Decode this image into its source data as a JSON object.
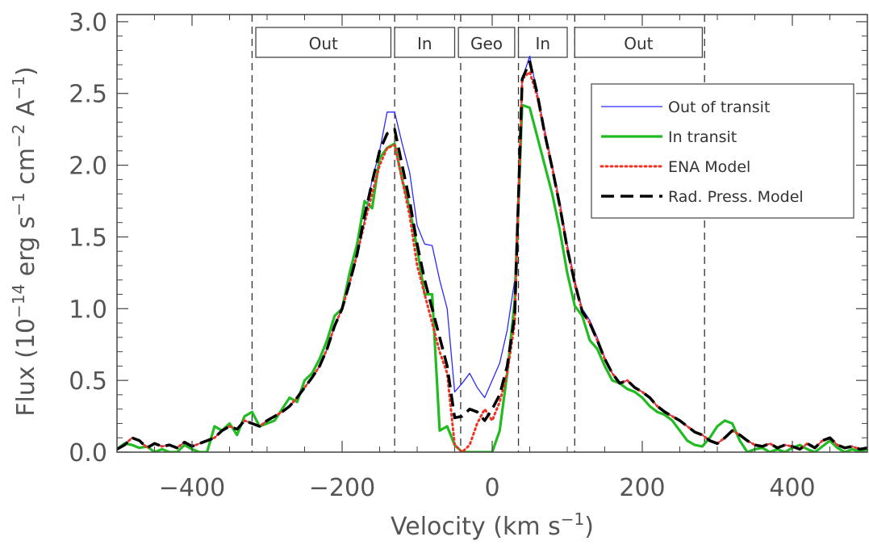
{
  "chart_data": {
    "type": "line",
    "title": "",
    "xlabel": "Velocity (km s",
    "xlabel_sup": "−1",
    "xlabel_end": ")",
    "ylabel": "Flux (10",
    "ylabel_sup1": "−14",
    "ylabel_mid1": " erg s",
    "ylabel_sup2": "−1",
    "ylabel_mid2": " cm",
    "ylabel_sup3": "−2",
    "ylabel_mid3": " A",
    "ylabel_sup4": "−1",
    "ylabel_end": ")",
    "xlim": [
      -500,
      500
    ],
    "ylim": [
      0,
      3.05
    ],
    "xticks": [
      -400,
      -200,
      0,
      200,
      400
    ],
    "xtick_labels": [
      "−400",
      "−200",
      "0",
      "200",
      "400"
    ],
    "yticks": [
      0,
      0.5,
      1,
      1.5,
      2,
      2.5,
      3
    ],
    "ytick_labels": [
      "0.0",
      "0.5",
      "1.0",
      "1.5",
      "2.0",
      "2.5",
      "3.0"
    ],
    "grid": false,
    "legend_position": "top-right",
    "regions": [
      {
        "label": "Out",
        "from": -315,
        "to": -135
      },
      {
        "label": "In",
        "from": -130,
        "to": -50
      },
      {
        "label": "Geo",
        "from": -45,
        "to": 30
      },
      {
        "label": "In",
        "from": 35,
        "to": 100
      },
      {
        "label": "Out",
        "from": 110,
        "to": 280
      }
    ],
    "dividers": [
      -320,
      -130,
      -42,
      35,
      110,
      283
    ],
    "series": [
      {
        "name": "Out of transit",
        "color": "#2a2aff",
        "style": "solid-thin",
        "x": [
          -500,
          -490,
          -480,
          -470,
          -460,
          -450,
          -440,
          -430,
          -420,
          -410,
          -400,
          -390,
          -380,
          -370,
          -360,
          -350,
          -340,
          -330,
          -320,
          -310,
          -300,
          -290,
          -280,
          -270,
          -260,
          -250,
          -240,
          -230,
          -220,
          -210,
          -200,
          -190,
          -180,
          -170,
          -160,
          -150,
          -140,
          -130,
          -120,
          -110,
          -100,
          -90,
          -80,
          -70,
          -60,
          -50,
          -40,
          -30,
          -20,
          -10,
          0,
          10,
          20,
          30,
          40,
          50,
          60,
          70,
          80,
          90,
          100,
          110,
          120,
          130,
          140,
          150,
          160,
          170,
          180,
          190,
          200,
          210,
          220,
          230,
          240,
          250,
          260,
          270,
          280,
          290,
          300,
          310,
          320,
          330,
          340,
          350,
          360,
          370,
          380,
          390,
          400,
          410,
          420,
          430,
          440,
          450,
          460,
          470,
          480,
          490,
          500
        ],
        "values": [
          0.02,
          0.05,
          0.1,
          0.08,
          0.03,
          0.06,
          0.04,
          0.05,
          0.03,
          0.07,
          0.04,
          0.06,
          0.08,
          0.1,
          0.15,
          0.18,
          0.16,
          0.22,
          0.2,
          0.18,
          0.22,
          0.25,
          0.28,
          0.32,
          0.38,
          0.45,
          0.52,
          0.6,
          0.72,
          0.88,
          1.0,
          1.18,
          1.38,
          1.62,
          1.9,
          2.1,
          2.37,
          2.37,
          2.15,
          1.95,
          1.58,
          1.45,
          1.44,
          1.2,
          1.0,
          0.42,
          0.48,
          0.55,
          0.45,
          0.38,
          0.5,
          0.62,
          0.85,
          1.2,
          2.6,
          2.76,
          2.5,
          2.25,
          2.0,
          1.75,
          1.45,
          1.2,
          1.0,
          0.92,
          0.8,
          0.66,
          0.55,
          0.48,
          0.5,
          0.45,
          0.42,
          0.38,
          0.32,
          0.28,
          0.25,
          0.22,
          0.18,
          0.14,
          0.12,
          0.08,
          0.06,
          0.1,
          0.15,
          0.12,
          0.08,
          0.05,
          0.04,
          0.06,
          0.03,
          0.05,
          0.04,
          0.02,
          0.06,
          0.03,
          0.08,
          0.1,
          0.05,
          0.03,
          0.04,
          0.02,
          0.03
        ]
      },
      {
        "name": "In transit",
        "color": "#22bb22",
        "style": "solid-thick",
        "x": [
          -500,
          -490,
          -480,
          -470,
          -460,
          -450,
          -440,
          -430,
          -420,
          -410,
          -400,
          -390,
          -380,
          -370,
          -360,
          -350,
          -340,
          -330,
          -320,
          -310,
          -300,
          -290,
          -280,
          -270,
          -260,
          -250,
          -240,
          -230,
          -220,
          -210,
          -200,
          -190,
          -180,
          -170,
          -160,
          -150,
          -140,
          -130,
          -120,
          -110,
          -100,
          -90,
          -80,
          -70,
          -60,
          -50,
          -40,
          -30,
          -20,
          -10,
          0,
          10,
          20,
          30,
          40,
          50,
          60,
          70,
          80,
          90,
          100,
          110,
          120,
          130,
          140,
          150,
          160,
          170,
          180,
          190,
          200,
          210,
          220,
          230,
          240,
          250,
          260,
          270,
          280,
          290,
          300,
          310,
          320,
          330,
          340,
          350,
          360,
          370,
          380,
          390,
          400,
          410,
          420,
          430,
          440,
          450,
          460,
          470,
          480,
          490,
          500
        ],
        "values": [
          0.02,
          0.06,
          0.05,
          0.03,
          0.04,
          0.0,
          0.02,
          0.0,
          0.0,
          0.05,
          0.02,
          0.0,
          0.0,
          0.18,
          0.15,
          0.2,
          0.12,
          0.25,
          0.28,
          0.18,
          0.2,
          0.22,
          0.3,
          0.38,
          0.35,
          0.5,
          0.55,
          0.65,
          0.78,
          0.95,
          1.0,
          1.25,
          1.45,
          1.75,
          1.7,
          2.05,
          2.12,
          2.15,
          1.9,
          1.7,
          1.42,
          1.1,
          1.1,
          0.15,
          0.18,
          0.05,
          0.0,
          0.0,
          0.0,
          0.0,
          0.0,
          0.15,
          0.55,
          1.05,
          2.42,
          2.4,
          2.2,
          2.0,
          1.8,
          1.55,
          1.25,
          1.02,
          0.95,
          0.78,
          0.72,
          0.6,
          0.5,
          0.48,
          0.44,
          0.42,
          0.38,
          0.32,
          0.28,
          0.26,
          0.22,
          0.15,
          0.08,
          0.05,
          0.04,
          0.1,
          0.18,
          0.22,
          0.2,
          0.08,
          0.0,
          0.02,
          0.03,
          0.0,
          0.02,
          0.0,
          0.03,
          0.05,
          0.02,
          0.0,
          0.04,
          0.08,
          0.03,
          0.0,
          0.02,
          0.0,
          0.02
        ]
      },
      {
        "name": "ENA Model",
        "color": "#ee3322",
        "style": "dotted",
        "x": [
          -500,
          -490,
          -480,
          -470,
          -460,
          -450,
          -440,
          -430,
          -420,
          -410,
          -400,
          -390,
          -380,
          -370,
          -360,
          -350,
          -340,
          -330,
          -320,
          -310,
          -300,
          -290,
          -280,
          -270,
          -260,
          -250,
          -240,
          -230,
          -220,
          -210,
          -200,
          -190,
          -180,
          -170,
          -160,
          -150,
          -140,
          -130,
          -120,
          -110,
          -100,
          -90,
          -80,
          -70,
          -60,
          -50,
          -40,
          -30,
          -20,
          -10,
          0,
          10,
          20,
          30,
          40,
          50,
          60,
          70,
          80,
          90,
          100,
          110,
          120,
          130,
          140,
          150,
          160,
          170,
          180,
          190,
          200,
          210,
          220,
          230,
          240,
          250,
          260,
          270,
          280,
          290,
          300,
          310,
          320,
          330,
          340,
          350,
          360,
          370,
          380,
          390,
          400,
          410,
          420,
          430,
          440,
          450,
          460,
          470,
          480,
          490,
          500
        ],
        "values": [
          0.02,
          0.05,
          0.1,
          0.08,
          0.03,
          0.06,
          0.04,
          0.05,
          0.03,
          0.07,
          0.04,
          0.06,
          0.08,
          0.1,
          0.15,
          0.18,
          0.16,
          0.22,
          0.2,
          0.18,
          0.22,
          0.25,
          0.28,
          0.32,
          0.38,
          0.45,
          0.52,
          0.6,
          0.72,
          0.88,
          1.0,
          1.18,
          1.38,
          1.6,
          1.8,
          2.0,
          2.12,
          2.14,
          1.9,
          1.65,
          1.3,
          1.1,
          0.9,
          0.7,
          0.55,
          0.05,
          0.0,
          0.05,
          0.2,
          0.3,
          0.22,
          0.35,
          0.55,
          0.9,
          2.6,
          2.65,
          2.48,
          2.22,
          1.98,
          1.72,
          1.42,
          1.18,
          0.98,
          0.9,
          0.78,
          0.65,
          0.55,
          0.48,
          0.5,
          0.45,
          0.42,
          0.38,
          0.32,
          0.28,
          0.25,
          0.22,
          0.18,
          0.14,
          0.12,
          0.08,
          0.06,
          0.1,
          0.15,
          0.12,
          0.08,
          0.05,
          0.04,
          0.06,
          0.03,
          0.05,
          0.04,
          0.02,
          0.06,
          0.03,
          0.08,
          0.1,
          0.05,
          0.03,
          0.04,
          0.02,
          0.03
        ]
      },
      {
        "name": "Rad. Press. Model",
        "color": "#000000",
        "style": "dashed",
        "x": [
          -500,
          -490,
          -480,
          -470,
          -460,
          -450,
          -440,
          -430,
          -420,
          -410,
          -400,
          -390,
          -380,
          -370,
          -360,
          -350,
          -340,
          -330,
          -320,
          -310,
          -300,
          -290,
          -280,
          -270,
          -260,
          -250,
          -240,
          -230,
          -220,
          -210,
          -200,
          -190,
          -180,
          -170,
          -160,
          -150,
          -140,
          -130,
          -120,
          -110,
          -100,
          -90,
          -80,
          -70,
          -60,
          -50,
          -40,
          -30,
          -20,
          -10,
          0,
          10,
          20,
          30,
          40,
          50,
          60,
          70,
          80,
          90,
          100,
          110,
          120,
          130,
          140,
          150,
          160,
          170,
          180,
          190,
          200,
          210,
          220,
          230,
          240,
          250,
          260,
          270,
          280,
          290,
          300,
          310,
          320,
          330,
          340,
          350,
          360,
          370,
          380,
          390,
          400,
          410,
          420,
          430,
          440,
          450,
          460,
          470,
          480,
          490,
          500
        ],
        "values": [
          0.02,
          0.05,
          0.1,
          0.08,
          0.03,
          0.06,
          0.04,
          0.05,
          0.03,
          0.07,
          0.04,
          0.06,
          0.08,
          0.1,
          0.15,
          0.18,
          0.16,
          0.22,
          0.2,
          0.18,
          0.22,
          0.25,
          0.28,
          0.32,
          0.38,
          0.45,
          0.52,
          0.6,
          0.72,
          0.88,
          1.0,
          1.18,
          1.38,
          1.65,
          1.88,
          2.1,
          2.22,
          2.25,
          2.0,
          1.75,
          1.45,
          1.2,
          1.0,
          0.8,
          0.6,
          0.24,
          0.25,
          0.3,
          0.28,
          0.22,
          0.3,
          0.4,
          0.6,
          0.95,
          2.6,
          2.72,
          2.5,
          2.22,
          1.98,
          1.72,
          1.42,
          1.18,
          0.98,
          0.9,
          0.78,
          0.65,
          0.55,
          0.48,
          0.5,
          0.45,
          0.42,
          0.38,
          0.32,
          0.28,
          0.25,
          0.22,
          0.18,
          0.14,
          0.12,
          0.08,
          0.06,
          0.1,
          0.15,
          0.12,
          0.08,
          0.05,
          0.04,
          0.06,
          0.03,
          0.05,
          0.04,
          0.02,
          0.06,
          0.03,
          0.08,
          0.1,
          0.05,
          0.03,
          0.04,
          0.02,
          0.03
        ]
      }
    ]
  }
}
